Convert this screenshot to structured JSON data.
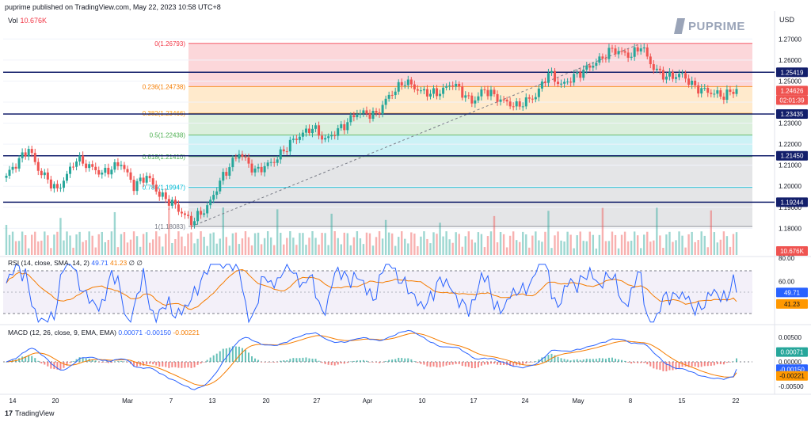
{
  "header": {
    "publisher_line": "puprime published on TradingView.com, May 22, 2023 10:58 UTC+8"
  },
  "branding": {
    "logo_text": "PUPRIME",
    "footer": "TradingView",
    "footer_mark": "17"
  },
  "price_panel": {
    "currency": "USD",
    "volume_label": "Vol",
    "volume_value": "10.676K",
    "price_ticks": [
      "1.27000",
      "1.26000",
      "1.25000",
      "1.24000",
      "1.23000",
      "1.22000",
      "1.21000",
      "1.20000",
      "1.19000",
      "1.18000"
    ],
    "current_price": "1.24626",
    "countdown": "02:01:39",
    "horizontal_levels": [
      {
        "label": "1.25419",
        "value": 1.25419
      },
      {
        "label": "1.23435",
        "value": 1.23435
      },
      {
        "label": "1.21450",
        "value": 1.2145
      },
      {
        "label": "1.19244",
        "value": 1.19244
      }
    ],
    "fib_levels": [
      {
        "label": "0(1.26793)",
        "value": 1.26793,
        "color": "#f23645"
      },
      {
        "label": "0.236(1.24738)",
        "value": 1.24738,
        "color": "#f57c00"
      },
      {
        "label": "0.382(1.23466)",
        "value": 1.23466,
        "color": "#ff9800"
      },
      {
        "label": "0.5(1.22438)",
        "value": 1.22438,
        "color": "#4caf50"
      },
      {
        "label": "0.618(1.21410)",
        "value": 1.2141,
        "color": "#4caf50"
      },
      {
        "label": "0.786(1.19947)",
        "value": 1.19947,
        "color": "#00bcd4"
      },
      {
        "label": "1(1.18083)",
        "value": 1.18083,
        "color": "#787b86"
      }
    ],
    "fib_zone_colors": [
      "#f23645",
      "#ff9800",
      "#4caf50",
      "#00bcd4",
      "#787b86"
    ]
  },
  "rsi_panel": {
    "label": "RSI (14, close, SMA, 14, 2)",
    "rsi_value": "49.71",
    "ma_value": "41.23",
    "extra": "∅ ∅",
    "ticks": [
      "80.00",
      "60.00"
    ]
  },
  "macd_panel": {
    "label": "MACD (12, 26, close, 9, EMA, EMA)",
    "hist_value": "0.00071",
    "macd_value": "-0.00150",
    "signal_value": "-0.00221",
    "ticks": [
      "0.00500",
      "0.00000",
      "-0.00500"
    ]
  },
  "x_axis_ticks": [
    "14",
    "20",
    "Mar",
    "7",
    "13",
    "20",
    "27",
    "Apr",
    "10",
    "17",
    "24",
    "May",
    "8",
    "15",
    "22"
  ],
  "colors": {
    "up": "#26a69a",
    "down": "#ef5350",
    "blue": "#2962ff",
    "orange": "#f57c00",
    "navy": "#131f6b"
  },
  "chart_data": {
    "type": "candlestick",
    "title": "",
    "x_tick_labels": [
      "14",
      "20",
      "Mar",
      "7",
      "13",
      "20",
      "27",
      "Apr",
      "10",
      "17",
      "24",
      "May",
      "8",
      "15",
      "22"
    ],
    "ylim": [
      1.176,
      1.2735
    ],
    "close_path_anchors": [
      [
        0,
        1.205
      ],
      [
        7,
        1.218
      ],
      [
        10,
        1.208
      ],
      [
        16,
        1.198
      ],
      [
        22,
        1.213
      ],
      [
        30,
        1.206
      ],
      [
        36,
        1.211
      ],
      [
        40,
        1.2
      ],
      [
        44,
        1.205
      ],
      [
        48,
        1.196
      ],
      [
        52,
        1.192
      ],
      [
        58,
        1.183
      ],
      [
        63,
        1.19
      ],
      [
        68,
        1.205
      ],
      [
        73,
        1.216
      ],
      [
        78,
        1.207
      ],
      [
        84,
        1.212
      ],
      [
        90,
        1.222
      ],
      [
        96,
        1.228
      ],
      [
        100,
        1.222
      ],
      [
        106,
        1.229
      ],
      [
        110,
        1.235
      ],
      [
        116,
        1.234
      ],
      [
        120,
        1.243
      ],
      [
        125,
        1.25
      ],
      [
        130,
        1.245
      ],
      [
        135,
        1.244
      ],
      [
        140,
        1.249
      ],
      [
        146,
        1.24
      ],
      [
        150,
        1.246
      ],
      [
        155,
        1.241
      ],
      [
        160,
        1.238
      ],
      [
        166,
        1.243
      ],
      [
        170,
        1.254
      ],
      [
        174,
        1.248
      ],
      [
        180,
        1.254
      ],
      [
        186,
        1.26
      ],
      [
        190,
        1.265
      ],
      [
        196,
        1.262
      ],
      [
        199,
        1.267
      ],
      [
        203,
        1.256
      ],
      [
        207,
        1.252
      ],
      [
        212,
        1.253
      ],
      [
        216,
        1.247
      ],
      [
        220,
        1.245
      ],
      [
        225,
        1.243
      ],
      [
        229,
        1.2463
      ]
    ],
    "current_close": 1.24626,
    "rsi": {
      "current": 49.71,
      "ma": 41.23,
      "bands": [
        70,
        30
      ]
    },
    "macd": {
      "hist": 0.00071,
      "macd": -0.0015,
      "signal": -0.00221
    }
  }
}
